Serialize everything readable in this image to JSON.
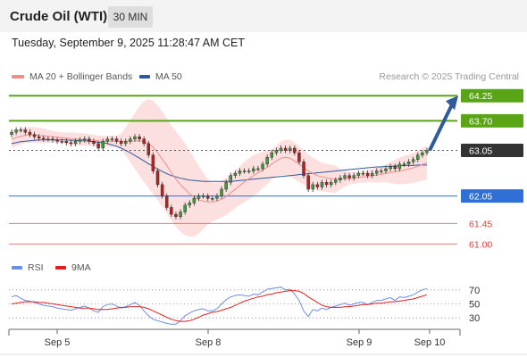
{
  "header": {
    "title": "Crude Oil (WTI)",
    "interval": "30 MIN"
  },
  "timestamp": "Tuesday, September 9, 2025 11:28:47 AM CET",
  "legend": {
    "ma20": "MA 20 + Bollinger Bands",
    "ma50": "MA 50",
    "ma20_color": "#f08c8c",
    "ma50_color": "#2f5a9e"
  },
  "credit": "Research © 2025 Trading Central",
  "rsi_legend": {
    "rsi": "RSI",
    "ma9": "9MA",
    "rsi_color": "#6b8ee8",
    "ma9_color": "#e02020"
  },
  "chart_data": [
    {
      "type": "candlestick",
      "x_labels": [
        "Sep 5",
        "Sep 8",
        "Sep 9",
        "Sep 10"
      ],
      "ylim": [
        60.85,
        64.45
      ],
      "levels": [
        {
          "label": "64.25",
          "value": 64.25,
          "style": "resistance",
          "color": "#5aa516"
        },
        {
          "label": "63.70",
          "value": 63.7,
          "style": "resistance",
          "color": "#5aa516"
        },
        {
          "label": "63.05",
          "value": 63.05,
          "style": "last",
          "color": "#333333"
        },
        {
          "label": "62.05",
          "value": 62.05,
          "style": "pivot",
          "color": "#2f6fd6"
        },
        {
          "label": "61.45",
          "value": 61.45,
          "style": "support",
          "color": "#e04040"
        },
        {
          "label": "61.00",
          "value": 61.0,
          "style": "support",
          "color": "#e04040"
        }
      ],
      "close": [
        63.45,
        63.5,
        63.5,
        63.45,
        63.4,
        63.35,
        63.32,
        63.3,
        63.3,
        63.28,
        63.25,
        63.25,
        63.22,
        63.2,
        63.25,
        63.28,
        63.3,
        63.25,
        63.2,
        63.1,
        63.25,
        63.3,
        63.3,
        63.25,
        63.2,
        63.25,
        63.3,
        63.35,
        63.3,
        63.2,
        62.95,
        62.6,
        62.3,
        62.05,
        61.8,
        61.65,
        61.6,
        61.7,
        61.85,
        61.9,
        62.0,
        62.05,
        62.05,
        62.0,
        62.0,
        62.05,
        62.2,
        62.35,
        62.5,
        62.55,
        62.6,
        62.6,
        62.6,
        62.65,
        62.65,
        62.75,
        62.9,
        63.0,
        63.05,
        63.1,
        63.05,
        63.1,
        63.0,
        62.8,
        62.5,
        62.2,
        62.3,
        62.25,
        62.35,
        62.3,
        62.35,
        62.4,
        62.45,
        62.5,
        62.45,
        62.5,
        62.55,
        62.55,
        62.5,
        62.55,
        62.6,
        62.6,
        62.65,
        62.7,
        62.65,
        62.75,
        62.75,
        62.8,
        62.85,
        62.95,
        63.0,
        63.05
      ],
      "ma20": [
        63.3,
        63.33,
        63.36,
        63.38,
        63.39,
        63.39,
        63.38,
        63.37,
        63.36,
        63.35,
        63.34,
        63.33,
        63.32,
        63.3,
        63.3,
        63.29,
        63.29,
        63.28,
        63.27,
        63.26,
        63.25,
        63.25,
        63.25,
        63.25,
        63.25,
        63.25,
        63.25,
        63.26,
        63.26,
        63.24,
        63.2,
        63.12,
        63.0,
        62.86,
        62.72,
        62.56,
        62.42,
        62.3,
        62.2,
        62.1,
        62.02,
        61.97,
        61.94,
        61.92,
        61.92,
        61.94,
        61.98,
        62.04,
        62.12,
        62.2,
        62.28,
        62.36,
        62.43,
        62.5,
        62.56,
        62.62,
        62.68,
        62.75,
        62.82,
        62.88,
        62.9,
        62.88,
        62.82,
        62.75,
        62.68,
        62.6,
        62.55,
        62.5,
        62.47,
        62.45,
        62.43,
        62.42,
        62.42,
        62.43,
        62.44,
        62.45,
        62.46,
        62.47,
        62.48,
        62.5,
        62.51,
        62.53,
        62.55,
        62.57,
        62.58,
        62.6,
        62.62,
        62.64,
        62.67,
        62.7,
        62.74,
        62.78
      ],
      "ma50": [
        63.2,
        63.22,
        63.24,
        63.25,
        63.26,
        63.27,
        63.28,
        63.28,
        63.28,
        63.28,
        63.28,
        63.28,
        63.28,
        63.27,
        63.27,
        63.26,
        63.26,
        63.25,
        63.24,
        63.23,
        63.22,
        63.2,
        63.17,
        63.14,
        63.1,
        63.05,
        63.0,
        62.94,
        62.88,
        62.82,
        62.76,
        62.7,
        62.64,
        62.59,
        62.54,
        62.5,
        62.47,
        62.44,
        62.42,
        62.4,
        62.39,
        62.38,
        62.37,
        62.37,
        62.37,
        62.37,
        62.37,
        62.37,
        62.37,
        62.38,
        62.39,
        62.4,
        62.41,
        62.42,
        62.43,
        62.44,
        62.45,
        62.46,
        62.47,
        62.48,
        62.49,
        62.5,
        62.51,
        62.52,
        62.53,
        62.54,
        62.55,
        62.56,
        62.57,
        62.58,
        62.59,
        62.6,
        62.61,
        62.62,
        62.63,
        62.64,
        62.65,
        62.66,
        62.67,
        62.68,
        62.69,
        62.69,
        62.7,
        62.7,
        62.71,
        62.71,
        62.72,
        62.72,
        62.72,
        62.73,
        62.73,
        62.73
      ]
    },
    {
      "type": "line",
      "name_series": [
        "RSI",
        "9MA"
      ],
      "ylim": [
        20,
        80
      ],
      "y_ticks": [
        "70",
        "50",
        "30"
      ],
      "rsi": [
        60,
        62,
        58,
        55,
        54,
        52,
        50,
        48,
        47,
        46,
        44,
        43,
        42,
        41,
        43,
        45,
        47,
        44,
        40,
        38,
        46,
        49,
        50,
        47,
        44,
        46,
        49,
        52,
        48,
        40,
        33,
        28,
        26,
        24,
        22,
        21,
        21,
        26,
        33,
        37,
        40,
        42,
        43,
        40,
        40,
        43,
        50,
        56,
        60,
        62,
        63,
        62,
        61,
        64,
        63,
        67,
        71,
        72,
        73,
        74,
        70,
        71,
        64,
        55,
        40,
        32,
        42,
        40,
        44,
        42,
        45,
        47,
        49,
        51,
        48,
        50,
        52,
        52,
        49,
        52,
        55,
        55,
        57,
        59,
        55,
        60,
        59,
        61,
        63,
        67,
        70,
        72
      ],
      "ma9": [
        50,
        51,
        52,
        53,
        53,
        53,
        52,
        52,
        51,
        50,
        49,
        48,
        47,
        46,
        45,
        44,
        44,
        44,
        43,
        42,
        42,
        42,
        43,
        44,
        45,
        45,
        46,
        46,
        46,
        45,
        43,
        40,
        37,
        34,
        31,
        28,
        26,
        25,
        25,
        26,
        28,
        31,
        34,
        36,
        38,
        39,
        41,
        43,
        45,
        48,
        51,
        54,
        56,
        58,
        60,
        61,
        63,
        64,
        66,
        67,
        68,
        69,
        69,
        68,
        65,
        60,
        56,
        52,
        48,
        46,
        45,
        45,
        45,
        46,
        46,
        47,
        48,
        49,
        49,
        50,
        51,
        51,
        52,
        53,
        53,
        54,
        55,
        56,
        57,
        59,
        61,
        63
      ]
    }
  ]
}
